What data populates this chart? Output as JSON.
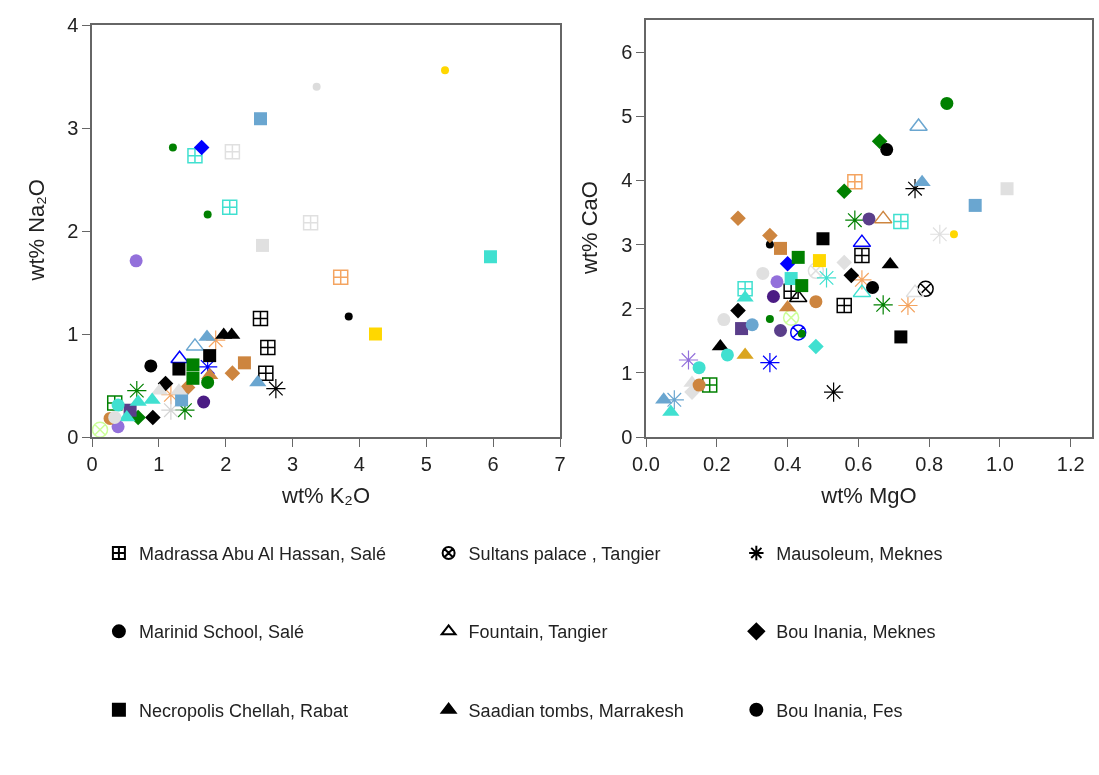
{
  "chart_data": [
    {
      "type": "scatter",
      "xlabel": "wt% K₂O",
      "ylabel": "wt% Na₂O",
      "xlim": [
        0,
        7
      ],
      "ylim": [
        0,
        4
      ],
      "xticks": [
        0,
        1,
        2,
        3,
        4,
        5,
        6,
        7
      ],
      "yticks": [
        0,
        1,
        2,
        3,
        4
      ],
      "series": [
        {
          "marker": "cross",
          "x": [
            1.54,
            2.1,
            2.06,
            3.27,
            3.72,
            2.52,
            2.63,
            2.6,
            0.34
          ],
          "values": [
            2.73,
            2.77,
            2.23,
            2.08,
            1.55,
            1.15,
            0.87,
            0.62,
            0.33
          ],
          "colors": [
            "#40e0d0",
            "#e0e0e0",
            "#40e0d0",
            "#e0e0e0",
            "#f4a460",
            "#000000",
            "#000000",
            "#000000",
            "#008000"
          ]
        },
        {
          "marker": "cross",
          "x": [
            0.12
          ],
          "values": [
            0.07
          ],
          "colors": [
            "#ccff99"
          ]
        },
        {
          "marker": "cross",
          "x": [
            2.75,
            1.39,
            1.73,
            1.85,
            1.18,
            0.67,
            1.18
          ],
          "values": [
            0.47,
            0.26,
            0.68,
            0.94,
            0.41,
            0.45,
            0.26
          ],
          "colors": [
            "#000000",
            "#008000",
            "#0000ff",
            "#f4a460",
            "#f4a460",
            "#008000",
            "#d3d3d3"
          ]
        },
        {
          "marker": "circle",
          "x": [
            5.28,
            3.36,
            1.21,
            1.73,
            3.84
          ],
          "values": [
            3.56,
            3.4,
            2.81,
            2.16,
            1.17
          ],
          "colors": [
            "#ffd700",
            "#dcdcdc",
            "#008000",
            "#008000",
            "#000000"
          ]
        },
        {
          "marker": "triangle",
          "x": [
            1.54,
            1.31
          ],
          "values": [
            0.88,
            0.76
          ],
          "colors": [
            "#6aa6d0",
            "#0000ff"
          ]
        },
        {
          "marker": "diamond",
          "x": [
            1.64,
            2.1,
            1.43,
            1.1,
            0.91,
            0.69
          ],
          "values": [
            2.81,
            0.62,
            0.48,
            0.52,
            0.19,
            0.19
          ],
          "colors": [
            "#0000ff",
            "#cd853f",
            "#cd853f",
            "#000000",
            "#000000",
            "#008000"
          ]
        },
        {
          "marker": "square",
          "x": [
            2.52,
            2.55,
            5.96,
            4.24,
            2.28,
            1.76,
            1.51,
            1.3,
            1.51,
            1.34,
            0.57
          ],
          "values": [
            3.09,
            1.86,
            1.75,
            1.0,
            0.72,
            0.79,
            0.7,
            0.66,
            0.57,
            0.36,
            0.26
          ],
          "colors": [
            "#6aa6d0",
            "#e0e0e0",
            "#40e0d0",
            "#ffd700",
            "#cd853f",
            "#000000",
            "#008000",
            "#000000",
            "#008000",
            "#6aa6d0",
            "#5a3e8a"
          ]
        },
        {
          "marker": "triangle",
          "x": [
            1.97,
            2.09,
            1.72,
            2.48,
            1.76,
            1.01,
            1.3,
            0.69,
            0.9,
            0.52
          ],
          "values": [
            0.99,
            0.99,
            0.97,
            0.53,
            0.6,
            0.45,
            0.45,
            0.34,
            0.36,
            0.19
          ],
          "colors": [
            "#000000",
            "#000000",
            "#6aa6d0",
            "#6aa6d0",
            "#cd853f",
            "#e0e0e0",
            "#e0e0e0",
            "#40e0d0",
            "#40e0d0",
            "#40e0d0"
          ]
        },
        {
          "marker": "circle",
          "x": [
            0.66,
            0.88,
            1.73,
            1.67,
            0.39,
            0.39,
            0.27,
            0.34
          ],
          "values": [
            1.71,
            0.69,
            0.53,
            0.34,
            0.31,
            0.1,
            0.18,
            0.19
          ],
          "colors": [
            "#9370db",
            "#000000",
            "#008000",
            "#4b1c84",
            "#40e0d0",
            "#9370db",
            "#cd853f",
            "#e0e0e0"
          ]
        }
      ]
    },
    {
      "type": "scatter",
      "xlabel": "wt% MgO",
      "ylabel": "wt% CaO",
      "xlim": [
        0,
        1.26
      ],
      "ylim": [
        0,
        6.5
      ],
      "xticks": [
        {
          "value": 0,
          "label": "0.0"
        },
        0.2,
        0.4,
        0.6,
        0.8,
        {
          "value": 1,
          "label": "1.0"
        },
        1.2
      ],
      "yticks": [
        0,
        1,
        2,
        3,
        4,
        5,
        6
      ],
      "legend": "bottom",
      "series": [
        {
          "name": "Madrassa Abu Al Hassan, Salé",
          "marker": "cross",
          "color": "#000000",
          "x": [
            0.18,
            0.28,
            0.41,
            0.59,
            0.72,
            0.61,
            0.56
          ],
          "values": [
            0.81,
            2.31,
            2.27,
            3.98,
            3.36,
            2.83,
            2.05
          ],
          "colors": [
            "#008000",
            "#40e0d0",
            "#000000",
            "#f4a460",
            "#40e0d0",
            "#000000",
            "#000000"
          ]
        },
        {
          "name": "Sultans palace , Tangier",
          "marker": "cross",
          "color": "#000000",
          "x": [
            0.41,
            0.43,
            0.48,
            0.79
          ],
          "values": [
            1.86,
            1.63,
            2.59,
            2.31
          ],
          "colors": [
            "#ccff99",
            "#0000ff",
            "#e0e0e0",
            "#000000"
          ]
        },
        {
          "name": "Mausoleum, Meknes",
          "marker": "cross",
          "color": "#000000",
          "x": [
            0.08,
            0.12,
            0.35,
            0.76,
            0.59,
            0.83,
            0.51,
            0.61,
            0.67,
            0.74,
            0.53
          ],
          "values": [
            0.58,
            1.2,
            1.16,
            3.87,
            3.38,
            3.16,
            2.48,
            2.45,
            2.06,
            2.05,
            0.7
          ],
          "colors": [
            "#6aa6d0",
            "#9370db",
            "#0000ff",
            "#000000",
            "#008000",
            "#e0e0e0",
            "#40e0d0",
            "#f4a460",
            "#008000",
            "#f4a460",
            "#000000"
          ]
        },
        {
          "name": "Marinid School, Salé",
          "marker": "circle",
          "color": "#000000",
          "x": [
            0.35,
            0.35,
            0.87,
            0.44
          ],
          "values": [
            3.0,
            1.84,
            3.16,
            1.61
          ],
          "colors": [
            "#000000",
            "#008000",
            "#ffd700",
            "#008000"
          ]
        },
        {
          "name": "Fountain, Tangier",
          "marker": "triangle",
          "color": "#000000",
          "x": [
            0.77,
            0.67,
            0.61,
            0.61,
            0.76,
            0.43
          ],
          "values": [
            4.84,
            3.4,
            3.03,
            2.25,
            2.25,
            2.17
          ],
          "colors": [
            "#6aa6d0",
            "#cd853f",
            "#0000ff",
            "#40e0d0",
            "#e0e0e0",
            "#000000"
          ]
        },
        {
          "name": "Bou Inania, Meknes",
          "marker": "diamond",
          "color": "#000000",
          "x": [
            0.26,
            0.4,
            0.66,
            0.56,
            0.35,
            0.56,
            0.58,
            0.48,
            0.13,
            0.26
          ],
          "values": [
            1.97,
            2.7,
            4.61,
            3.83,
            3.14,
            2.72,
            2.52,
            1.41,
            0.7,
            3.41
          ],
          "colors": [
            "#000000",
            "#0000ff",
            "#008000",
            "#008000",
            "#cd853f",
            "#e0e0e0",
            "#000000",
            "#40e0d0",
            "#e0e0e0",
            "#cd853f"
          ]
        },
        {
          "name": "Necropolis Chellah, Rabat",
          "marker": "square",
          "color": "#000000",
          "x": [
            0.27,
            0.38,
            0.41,
            1.02,
            0.93,
            0.5,
            0.43,
            0.49,
            0.44,
            0.72
          ],
          "values": [
            1.69,
            2.94,
            2.47,
            3.87,
            3.61,
            3.09,
            2.8,
            2.75,
            2.36,
            1.56
          ],
          "colors": [
            "#5a3e8a",
            "#cd853f",
            "#40e0d0",
            "#e0e0e0",
            "#6aa6d0",
            "#000000",
            "#008000",
            "#ffd700",
            "#008000",
            "#000000"
          ]
        },
        {
          "name": "Saadian tombs, Marrakesh",
          "marker": "triangle",
          "color": "#000000",
          "x": [
            0.07,
            0.05,
            0.13,
            0.21,
            0.28,
            0.28,
            0.4,
            0.78,
            0.69
          ],
          "values": [
            0.39,
            0.58,
            0.84,
            1.41,
            1.28,
            2.17,
            2.02,
            3.97,
            2.69
          ],
          "colors": [
            "#40e0d0",
            "#6aa6d0",
            "#e0e0e0",
            "#000000",
            "#daa520",
            "#40e0d0",
            "#cd853f",
            "#6aa6d0",
            "#000000"
          ]
        },
        {
          "name": "Bou Inania, Fes",
          "marker": "circle",
          "color": "#000000",
          "x": [
            0.15,
            0.15,
            0.23,
            0.22,
            0.3,
            0.33,
            0.37,
            0.36,
            0.38,
            0.85,
            0.68,
            0.63,
            0.64,
            0.48
          ],
          "values": [
            0.81,
            1.08,
            1.28,
            1.83,
            1.75,
            2.55,
            2.42,
            2.19,
            1.66,
            5.2,
            4.48,
            3.4,
            2.33,
            2.11
          ],
          "colors": [
            "#cd853f",
            "#40e0d0",
            "#40e0d0",
            "#e0e0e0",
            "#6aa6d0",
            "#e0e0e0",
            "#9370db",
            "#4b1c84",
            "#5a3e8a",
            "#008000",
            "#000000",
            "#5a3e8a",
            "#000000",
            "#cd853f"
          ]
        }
      ]
    }
  ]
}
